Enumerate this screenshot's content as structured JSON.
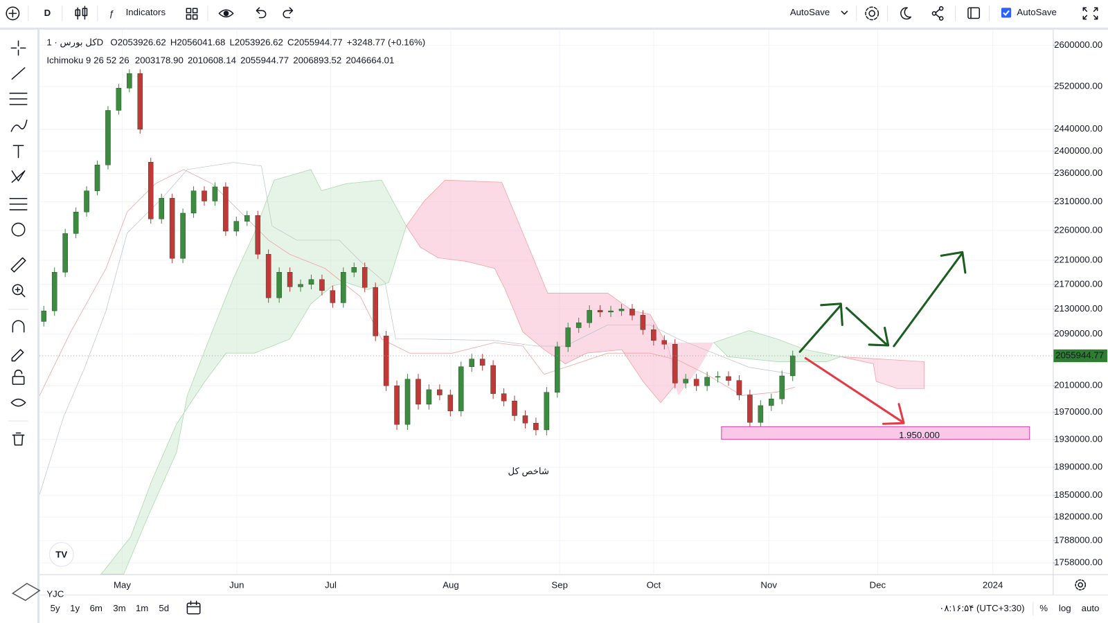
{
  "toolbar": {
    "interval": "D",
    "indicators": "Indicators",
    "autosave_menu": "AutoSave",
    "autosave_checkbox": "AutoSave"
  },
  "legend": {
    "symbol": "کل بورس · 1D",
    "ohlc": [
      "O2053926.62",
      "H2056041.68",
      "L2053926.62",
      "C2055944.77",
      "+3248.77 (+0.16%)"
    ],
    "indicator": "Ichimoku 9 26 52 26",
    "ichimoku_values": [
      {
        "text": "2003178.90",
        "color": "#2196f3"
      },
      {
        "text": "2010608.14",
        "color": "#b71c1c"
      },
      {
        "text": "2055944.77",
        "color": "#66bb6a"
      },
      {
        "text": "2006893.52",
        "color": "#2e7d32"
      },
      {
        "text": "2046664.01",
        "color": "#d32f2f"
      }
    ]
  },
  "chart_data": {
    "type": "candlestick",
    "log_scale": true,
    "grid": true,
    "up_color": "#3d8b40",
    "down_color": "#c13838",
    "ylim": [
      1743000,
      2626500
    ],
    "yticks": [
      {
        "value": 2600000,
        "label": "2600000.00"
      },
      {
        "value": 2520000,
        "label": "2520000.00"
      },
      {
        "value": 2440000,
        "label": "2440000.00"
      },
      {
        "value": 2400000,
        "label": "2400000.00"
      },
      {
        "value": 2360000,
        "label": "2360000.00"
      },
      {
        "value": 2310000,
        "label": "2310000.00"
      },
      {
        "value": 2260000,
        "label": "2260000.00"
      },
      {
        "value": 2210000,
        "label": "2210000.00"
      },
      {
        "value": 2170000,
        "label": "2170000.00"
      },
      {
        "value": 2130000,
        "label": "2130000.00"
      },
      {
        "value": 2090000,
        "label": "2090000.00"
      },
      {
        "value": 2010000,
        "label": "2010000.00"
      },
      {
        "value": 1970000,
        "label": "1970000.00"
      },
      {
        "value": 1930000,
        "label": "1930000.00"
      },
      {
        "value": 1890000,
        "label": "1890000.00"
      },
      {
        "value": 1850000,
        "label": "1850000.00"
      },
      {
        "value": 1820000,
        "label": "1820000.00"
      },
      {
        "value": 1788000,
        "label": "1788000.00"
      },
      {
        "value": 1758000,
        "label": "1758000.00"
      }
    ],
    "x_labels": [
      "May",
      "Jun",
      "Jul",
      "Aug",
      "Sep",
      "Oct",
      "Nov",
      "Dec",
      "2024"
    ],
    "last_price": 2055944.77,
    "last_price_color": "#2e7d32",
    "candles": [
      [
        2110000,
        2135000,
        2102000,
        2127000
      ],
      [
        2127000,
        2198000,
        2119000,
        2190000
      ],
      [
        2190000,
        2263000,
        2182000,
        2255000
      ],
      [
        2255000,
        2300000,
        2247000,
        2292000
      ],
      [
        2292000,
        2337000,
        2284000,
        2329000
      ],
      [
        2329000,
        2383000,
        2321000,
        2375000
      ],
      [
        2375000,
        2483000,
        2367000,
        2475000
      ],
      [
        2475000,
        2525000,
        2467000,
        2517000
      ],
      [
        2517000,
        2553000,
        2509000,
        2545000
      ],
      [
        2545000,
        2553000,
        2432000,
        2440000
      ],
      [
        2380000,
        2388000,
        2272000,
        2280000
      ],
      [
        2280000,
        2324000,
        2272000,
        2316000
      ],
      [
        2316000,
        2324000,
        2205000,
        2213000
      ],
      [
        2213000,
        2298000,
        2205000,
        2290000
      ],
      [
        2290000,
        2337000,
        2282000,
        2329000
      ],
      [
        2329000,
        2337000,
        2303000,
        2311000
      ],
      [
        2311000,
        2344000,
        2303000,
        2336000
      ],
      [
        2336000,
        2344000,
        2251000,
        2259000
      ],
      [
        2259000,
        2284000,
        2251000,
        2276000
      ],
      [
        2276000,
        2294000,
        2268000,
        2286000
      ],
      [
        2286000,
        2294000,
        2212000,
        2220000
      ],
      [
        2220000,
        2228000,
        2140000,
        2148000
      ],
      [
        2148000,
        2198000,
        2140000,
        2190000
      ],
      [
        2190000,
        2198000,
        2158000,
        2166000
      ],
      [
        2166000,
        2178000,
        2158000,
        2170000
      ],
      [
        2170000,
        2186000,
        2162000,
        2178000
      ],
      [
        2178000,
        2186000,
        2152000,
        2160000
      ],
      [
        2160000,
        2168000,
        2132000,
        2140000
      ],
      [
        2140000,
        2198000,
        2132000,
        2190000
      ],
      [
        2190000,
        2206000,
        2182000,
        2198000
      ],
      [
        2198000,
        2206000,
        2157000,
        2165000
      ],
      [
        2165000,
        2173000,
        2079000,
        2087000
      ],
      [
        2087000,
        2095000,
        2002000,
        2010000
      ],
      [
        2010000,
        2018000,
        1944000,
        1952000
      ],
      [
        1952000,
        2028000,
        1944000,
        2020000
      ],
      [
        2020000,
        2028000,
        1974000,
        1982000
      ],
      [
        1982000,
        2012000,
        1974000,
        2004000
      ],
      [
        2004000,
        2012000,
        1988000,
        1996000
      ],
      [
        1996000,
        2004000,
        1964000,
        1972000
      ],
      [
        1972000,
        2047000,
        1964000,
        2039000
      ],
      [
        2039000,
        2059000,
        2031000,
        2051000
      ],
      [
        2051000,
        2059000,
        2033000,
        2041000
      ],
      [
        2041000,
        2049000,
        1990000,
        1998000
      ],
      [
        1998000,
        2006000,
        1979000,
        1987000
      ],
      [
        1987000,
        1995000,
        1957000,
        1965000
      ],
      [
        1965000,
        1973000,
        1946000,
        1954000
      ],
      [
        1954000,
        1962000,
        1936000,
        1944000
      ],
      [
        1944000,
        2008000,
        1936000,
        2000000
      ],
      [
        2000000,
        2078000,
        1992000,
        2070000
      ],
      [
        2070000,
        2108000,
        2062000,
        2100000
      ],
      [
        2100000,
        2116000,
        2092000,
        2108000
      ],
      [
        2108000,
        2136000,
        2100000,
        2128000
      ],
      [
        2128000,
        2136000,
        2117000,
        2125000
      ],
      [
        2125000,
        2135000,
        2117000,
        2127000
      ],
      [
        2127000,
        2138000,
        2119000,
        2130000
      ],
      [
        2130000,
        2138000,
        2112000,
        2120000
      ],
      [
        2120000,
        2128000,
        2089000,
        2097000
      ],
      [
        2097000,
        2105000,
        2072000,
        2080000
      ],
      [
        2080000,
        2088000,
        2066000,
        2074000
      ],
      [
        2074000,
        2082000,
        2006000,
        2014000
      ],
      [
        2014000,
        2028000,
        2006000,
        2020000
      ],
      [
        2020000,
        2028000,
        2002000,
        2010000
      ],
      [
        2010000,
        2031000,
        2002000,
        2023000
      ],
      [
        2023000,
        2032000,
        2015000,
        2024000
      ],
      [
        2024000,
        2032000,
        2010000,
        2018000
      ],
      [
        2018000,
        2026000,
        1988000,
        1996000
      ],
      [
        1996000,
        2004000,
        1947000,
        1955000
      ],
      [
        1955000,
        1988000,
        1947000,
        1980000
      ],
      [
        1980000,
        1998000,
        1972000,
        1990000
      ],
      [
        1990000,
        2033000,
        1982000,
        2025000
      ],
      [
        2025000,
        2064000,
        2017000,
        2056000
      ]
    ],
    "annotations": {
      "target_label": "1.950.000",
      "chart_label": "شاخص کل"
    }
  },
  "bottom_bar": {
    "ranges": [
      "5y",
      "1y",
      "6m",
      "3m",
      "1m",
      "5d"
    ],
    "time": "۰۸:۱۶:۵۴ (UTC+3:30)",
    "percent": "%",
    "log": "log",
    "auto": "auto"
  },
  "watermark": "YJC"
}
